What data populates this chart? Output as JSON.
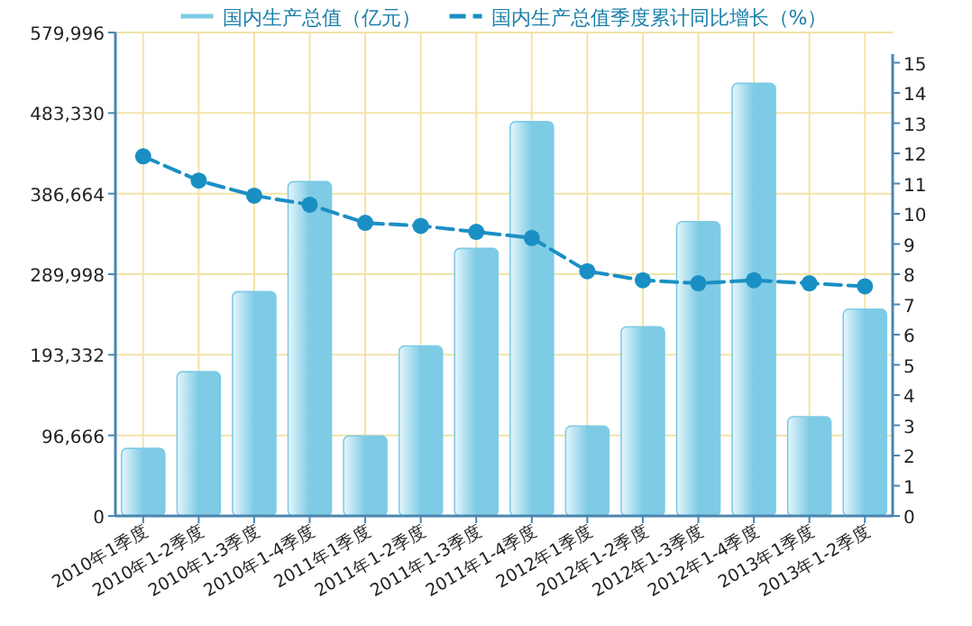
{
  "chart_data": {
    "type": "bar",
    "categories": [
      "2010年1季度",
      "2010年1-2季度",
      "2010年1-3季度",
      "2010年1-4季度",
      "2011年1季度",
      "2011年1-2季度",
      "2011年1-3季度",
      "2011年1-4季度",
      "2012年1季度",
      "2012年1-2季度",
      "2012年1-3季度",
      "2012年1-4季度",
      "2013年1季度",
      "2013年1-2季度"
    ],
    "series": [
      {
        "name": "国内生产总值（亿元）",
        "color": "#7ecbe5",
        "values": [
          81000,
          173000,
          269000,
          401000,
          96000,
          204000,
          321000,
          473000,
          108000,
          227000,
          353000,
          519000,
          119000,
          248000
        ]
      },
      {
        "name": "国内生产总值季度累计同比增长（%）",
        "type": "line",
        "axis": "y2",
        "color": "#1a8fc4",
        "values": [
          11.9,
          11.1,
          10.6,
          10.3,
          9.7,
          9.6,
          9.4,
          9.2,
          8.1,
          7.8,
          7.7,
          7.8,
          7.7,
          7.6
        ]
      }
    ],
    "ylim": [
      0,
      579996
    ],
    "yticks": [
      0,
      {
        "value": 96666,
        "label": "96,666"
      },
      {
        "value": 193332,
        "label": "193,332"
      },
      {
        "value": 289998,
        "label": "289,998"
      },
      {
        "value": 386664,
        "label": "386,664"
      },
      {
        "value": 483330,
        "label": "483,330"
      },
      {
        "value": 579996,
        "label": "579,996"
      }
    ],
    "y2lim": [
      0,
      16
    ],
    "y2ticks": [
      0,
      1,
      2,
      3,
      4,
      5,
      6,
      7,
      8,
      9,
      10,
      11,
      12,
      13,
      14,
      15
    ],
    "grid": true,
    "legend": "top",
    "marker": "circle",
    "line_style": "dashed"
  }
}
